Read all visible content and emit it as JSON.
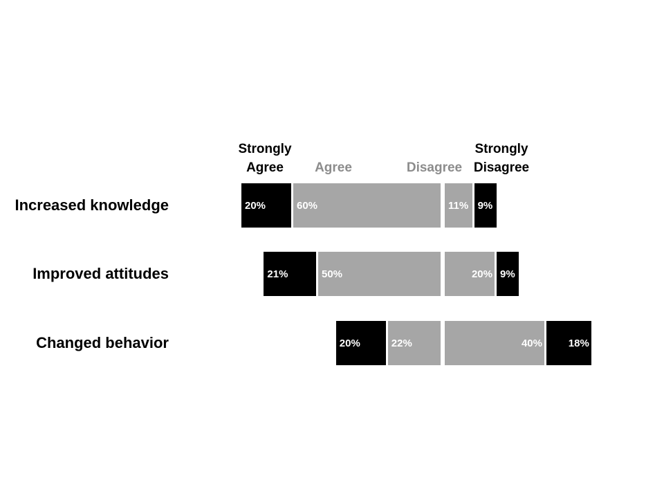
{
  "chart_data": {
    "type": "bar",
    "orientation": "horizontal",
    "stacked": true,
    "diverging": true,
    "legend_headers": [
      {
        "lines": [
          "Strongly",
          "Agree"
        ],
        "color": "#000000"
      },
      {
        "lines": [
          "Agree"
        ],
        "color": "#8c8c8c"
      },
      {
        "lines": [
          "Disagree"
        ],
        "color": "#8c8c8c"
      },
      {
        "lines": [
          "Strongly",
          "Disagree"
        ],
        "color": "#000000"
      }
    ],
    "categories": [
      "Increased knowledge",
      "Improved attitudes",
      "Changed behavior"
    ],
    "series": [
      {
        "name": "Strongly Agree",
        "values": [
          20,
          21,
          20
        ],
        "labels": [
          "20%",
          "21%",
          "20%"
        ],
        "color": "#000000"
      },
      {
        "name": "Agree",
        "values": [
          60,
          50,
          22
        ],
        "labels": [
          "60%",
          "50%",
          "22%"
        ],
        "color": "#a6a6a6"
      },
      {
        "name": "Disagree",
        "values": [
          11,
          20,
          40
        ],
        "labels": [
          "11%",
          "20%",
          "40%"
        ],
        "color": "#a6a6a6"
      },
      {
        "name": "Strongly Disagree",
        "values": [
          9,
          9,
          18
        ],
        "labels": [
          "9%",
          "9%",
          "18%"
        ],
        "color": "#000000"
      }
    ],
    "unit": "%",
    "grid": false
  }
}
